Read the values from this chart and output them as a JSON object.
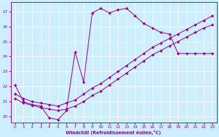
{
  "xlabel": "Windchill (Refroidissement éolien,°C)",
  "bg_color": "#cceeff",
  "line_color": "#990099",
  "grid_color": "#ffffff",
  "xlim": [
    -0.5,
    23.5
  ],
  "ylim": [
    19.6,
    27.6
  ],
  "yticks": [
    20,
    21,
    22,
    23,
    24,
    25,
    26,
    27
  ],
  "xticks": [
    0,
    1,
    2,
    3,
    4,
    5,
    6,
    7,
    8,
    9,
    10,
    11,
    12,
    13,
    14,
    15,
    16,
    17,
    18,
    19,
    20,
    21,
    22,
    23
  ],
  "curve1_x": [
    0,
    1,
    2,
    3,
    4,
    5,
    6,
    7,
    8,
    9,
    10,
    11,
    12,
    13,
    14,
    15,
    16,
    17,
    18,
    19,
    20,
    21,
    22,
    23
  ],
  "curve1_y": [
    22.1,
    21.0,
    20.8,
    20.7,
    19.9,
    19.8,
    20.4,
    24.3,
    22.3,
    26.9,
    27.2,
    26.9,
    27.1,
    27.2,
    26.7,
    26.2,
    25.9,
    25.6,
    25.5,
    24.2,
    24.2,
    24.2,
    24.2,
    24.2
  ],
  "curve2_x": [
    0,
    1,
    2,
    3,
    4,
    5,
    6,
    7,
    8,
    9,
    10,
    11,
    12,
    13,
    14,
    15,
    16,
    17,
    18,
    19,
    20,
    21,
    22,
    23
  ],
  "curve2_y": [
    21.2,
    20.9,
    20.75,
    20.6,
    20.5,
    20.4,
    20.5,
    20.7,
    21.0,
    21.4,
    21.7,
    22.1,
    22.5,
    22.9,
    23.3,
    23.7,
    24.1,
    24.4,
    24.7,
    25.0,
    25.3,
    25.6,
    25.9,
    26.1
  ],
  "curve3_x": [
    0,
    1,
    2,
    3,
    4,
    5,
    6,
    7,
    8,
    9,
    10,
    11,
    12,
    13,
    14,
    15,
    16,
    17,
    18,
    19,
    20,
    21,
    22,
    23
  ],
  "curve3_y": [
    21.5,
    21.2,
    21.0,
    20.9,
    20.8,
    20.7,
    20.9,
    21.1,
    21.5,
    21.9,
    22.2,
    22.6,
    23.0,
    23.4,
    23.8,
    24.2,
    24.6,
    24.9,
    25.2,
    25.5,
    25.8,
    26.1,
    26.4,
    26.7
  ]
}
